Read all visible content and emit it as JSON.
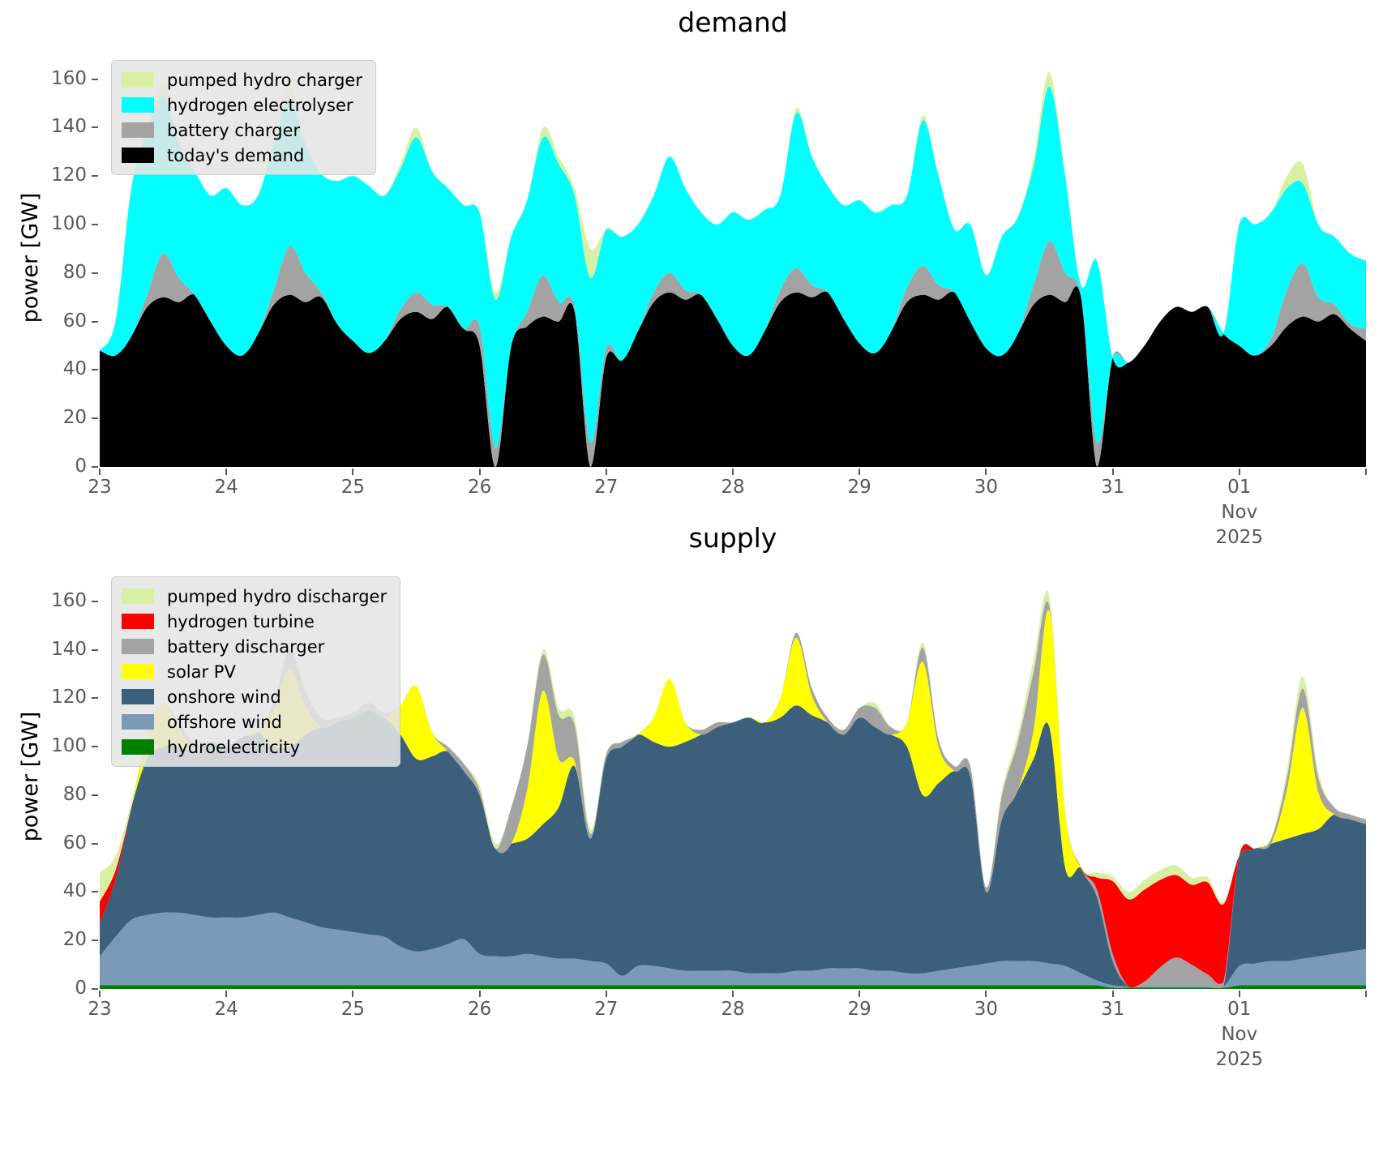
{
  "figure": {
    "background": "#ffffff",
    "tick_color": "#595959",
    "text_color": "#000000"
  },
  "chart_data": [
    {
      "type": "area",
      "title": "demand",
      "ylabel": "power [GW]",
      "ylim": [
        0,
        172.6
      ],
      "y_ticks": [
        0,
        20,
        40,
        60,
        80,
        100,
        120,
        140,
        160
      ],
      "x": {
        "unit": "hours since 2025-10-23 00:00",
        "step_hours": 3,
        "total_hours": 240,
        "tick_hours": [
          0,
          24,
          48,
          72,
          96,
          120,
          144,
          168,
          192,
          216
        ],
        "tick_labels": [
          "23",
          "24",
          "25",
          "26",
          "27",
          "28",
          "29",
          "30",
          "31",
          "01"
        ],
        "sub_label_index": 9,
        "sub_lines": [
          "Nov",
          "2025"
        ],
        "extra_tick_hour": 240
      },
      "legend_note": "legend lists series top of stack first",
      "series": [
        {
          "name": "todays-demand",
          "label": "today's demand",
          "color": "#000000",
          "values": [
            48,
            46,
            54,
            66,
            70,
            68,
            71,
            60,
            50,
            46,
            55,
            67,
            71,
            68,
            70,
            59,
            52,
            47,
            52,
            61,
            64,
            61,
            66,
            57,
            50,
            0,
            50,
            58,
            62,
            60,
            64,
            0,
            45,
            44,
            56,
            68,
            72,
            69,
            71,
            61,
            50,
            46,
            56,
            68,
            72,
            70,
            72,
            61,
            51,
            47,
            56,
            68,
            71,
            69,
            72,
            60,
            49,
            46,
            55,
            67,
            71,
            68,
            70,
            0,
            45,
            43,
            50,
            60,
            66,
            64,
            66,
            55,
            50,
            46,
            50,
            58,
            62,
            60,
            63,
            57,
            52
          ]
        },
        {
          "name": "battery-charger",
          "label": "battery charger",
          "color": "#a3a3a3",
          "values": [
            0,
            0,
            0,
            5,
            18,
            10,
            0,
            0,
            0,
            0,
            0,
            6,
            20,
            12,
            2,
            0,
            0,
            0,
            0,
            4,
            8,
            6,
            0,
            0,
            8,
            8,
            0,
            6,
            17,
            8,
            2,
            10,
            4,
            0,
            0,
            4,
            8,
            4,
            0,
            0,
            0,
            0,
            0,
            5,
            10,
            5,
            0,
            0,
            0,
            0,
            0,
            6,
            12,
            6,
            0,
            0,
            0,
            0,
            0,
            8,
            22,
            12,
            0,
            10,
            0,
            0,
            0,
            0,
            0,
            0,
            0,
            0,
            0,
            0,
            3,
            15,
            22,
            10,
            4,
            2,
            5
          ]
        },
        {
          "name": "hydrogen-electrolyser",
          "label": "hydrogen electrolyser",
          "color": "#00ffff",
          "values": [
            0,
            14,
            61,
            67,
            65,
            55,
            51,
            52,
            65,
            62,
            57,
            60,
            61,
            53,
            49,
            59,
            68,
            69,
            60,
            58,
            64,
            55,
            49,
            51,
            47,
            61,
            45,
            46,
            57,
            57,
            46,
            68,
            49,
            51,
            44,
            40,
            48,
            42,
            34,
            39,
            55,
            56,
            50,
            39,
            64,
            53,
            44,
            47,
            59,
            58,
            52,
            38,
            60,
            45,
            26,
            40,
            30,
            49,
            48,
            49,
            64,
            40,
            5,
            75,
            0,
            0,
            0,
            0,
            0,
            0,
            0,
            0,
            50,
            54,
            52,
            42,
            33,
            30,
            28,
            29,
            28
          ]
        },
        {
          "name": "pumped-hydro-charger",
          "label": "pumped hydro charger",
          "color": "#d9f0a3",
          "values": [
            0,
            0,
            0,
            2,
            5,
            2,
            0,
            0,
            0,
            0,
            0,
            2,
            6,
            2,
            0,
            0,
            0,
            0,
            0,
            2,
            4,
            0,
            0,
            0,
            0,
            3,
            0,
            0,
            4,
            3,
            3,
            12,
            0,
            0,
            0,
            0,
            0,
            0,
            0,
            0,
            0,
            0,
            0,
            0,
            2,
            0,
            0,
            0,
            0,
            0,
            0,
            0,
            2,
            0,
            0,
            0,
            0,
            0,
            0,
            3,
            6,
            0,
            0,
            0,
            0,
            0,
            0,
            0,
            0,
            0,
            0,
            0,
            0,
            0,
            0,
            5,
            8,
            0,
            0,
            0,
            0
          ]
        }
      ]
    },
    {
      "type": "area",
      "title": "supply",
      "ylabel": "power [GW]",
      "ylim": [
        0,
        175
      ],
      "y_ticks": [
        0,
        20,
        40,
        60,
        80,
        100,
        120,
        140,
        160
      ],
      "x": {
        "unit": "hours since 2025-10-23 00:00",
        "step_hours": 3,
        "total_hours": 240,
        "tick_hours": [
          0,
          24,
          48,
          72,
          96,
          120,
          144,
          168,
          192,
          216
        ],
        "tick_labels": [
          "23",
          "24",
          "25",
          "26",
          "27",
          "28",
          "29",
          "30",
          "31",
          "01"
        ],
        "sub_label_index": 9,
        "sub_lines": [
          "Nov",
          "2025"
        ],
        "extra_tick_hour": 240
      },
      "legend_note": "legend lists series top of stack first",
      "series": [
        {
          "name": "hydroelectricity",
          "label": "hydroelectricity",
          "color": "#008000",
          "values": [
            1.5,
            1.5,
            1.5,
            1.5,
            1.5,
            1.5,
            1.5,
            1.5,
            1.5,
            1.5,
            1.5,
            1.5,
            1.5,
            1.5,
            1.5,
            1.5,
            1.5,
            1.5,
            1.5,
            1.5,
            1.5,
            1.5,
            1.5,
            1.5,
            1.5,
            1.5,
            1.5,
            1.5,
            1.5,
            1.5,
            1.5,
            1.5,
            1.5,
            1.5,
            1.5,
            1.5,
            1.5,
            1.5,
            1.5,
            1.5,
            1.5,
            1.5,
            1.5,
            1.5,
            1.5,
            1.5,
            1.5,
            1.5,
            1.5,
            1.5,
            1.5,
            1.5,
            1.5,
            1.5,
            1.5,
            1.5,
            1.5,
            1.5,
            1.5,
            1.5,
            1.5,
            1.5,
            1.5,
            1.5,
            0.5,
            0.5,
            0.5,
            0.5,
            0.5,
            0.5,
            0.5,
            0.5,
            1.5,
            1.5,
            1.5,
            1.5,
            1.5,
            1.5,
            1.5,
            1.5,
            1.5
          ]
        },
        {
          "name": "offshore-wind",
          "label": "offshore wind",
          "color": "#7b9ab8",
          "values": [
            12,
            20,
            27,
            29,
            30,
            30,
            29,
            28,
            28,
            28,
            29,
            30,
            28,
            26,
            24,
            23,
            22,
            21,
            20,
            16,
            14,
            15,
            17,
            19,
            13,
            12,
            12,
            13,
            12,
            11,
            11,
            10,
            9,
            4,
            8,
            8,
            7,
            6,
            6,
            6,
            6,
            5,
            5,
            5,
            6,
            6,
            7,
            7,
            7,
            6,
            6,
            5,
            5,
            6,
            7,
            8,
            9,
            10,
            10,
            10,
            9,
            8,
            5,
            2,
            1,
            0.5,
            0.5,
            0.5,
            0.5,
            0.5,
            0.5,
            0.5,
            8,
            9,
            10,
            10,
            11,
            12,
            13,
            14,
            15
          ]
        },
        {
          "name": "onshore-wind",
          "label": "onshore wind",
          "color": "#3c607c",
          "values": [
            13.5,
            23.5,
            46.5,
            64.5,
            68.5,
            68.5,
            67.5,
            72.5,
            70.5,
            74.5,
            75.5,
            68.5,
            70.5,
            77.5,
            82.5,
            85.5,
            88.5,
            92.5,
            90.5,
            87.5,
            79.5,
            79.5,
            79.5,
            69.5,
            65.5,
            44.5,
            46.5,
            47.5,
            54.5,
            62.5,
            79.5,
            50.5,
            84.5,
            94.5,
            95.5,
            92.5,
            91.5,
            94.5,
            97.5,
            100.5,
            102.5,
            105.5,
            103.5,
            105.5,
            109.5,
            105.5,
            101.5,
            96.5,
            103.5,
            100.5,
            97.5,
            93.5,
            73.5,
            77.5,
            81.5,
            78.5,
            29.5,
            58.5,
            70.5,
            83.5,
            97.5,
            40.5,
            43.5,
            34.5,
            10,
            0,
            0,
            0,
            0,
            0,
            0,
            0,
            45.5,
            47.5,
            48.5,
            50.5,
            51.5,
            52.5,
            57.5,
            54.5,
            51.5
          ]
        },
        {
          "name": "solar-pv",
          "label": "solar PV",
          "color": "#ffff00",
          "values": [
            0,
            0,
            0,
            10,
            18,
            8,
            0,
            0,
            0,
            0,
            0,
            15,
            32,
            12,
            0,
            0,
            0,
            0,
            0,
            12,
            30,
            10,
            0,
            0,
            0,
            0,
            0,
            20,
            55,
            20,
            2,
            0,
            0,
            0,
            0,
            10,
            28,
            8,
            0,
            0,
            0,
            0,
            0,
            8,
            28,
            8,
            0,
            0,
            0,
            0,
            0,
            10,
            55,
            15,
            0,
            0,
            0,
            0,
            0,
            12,
            48,
            22,
            0,
            0,
            0,
            0,
            0,
            0,
            0,
            0,
            0,
            0,
            0,
            0,
            0,
            20,
            52,
            15,
            0,
            0,
            0
          ]
        },
        {
          "name": "battery-discharger",
          "label": "battery discharger",
          "color": "#a3a3a3",
          "values": [
            0,
            0,
            0,
            0,
            0,
            2,
            3,
            0,
            0,
            0,
            0,
            4,
            8,
            6,
            4,
            2,
            2,
            3,
            2,
            0,
            0,
            0,
            2,
            3,
            2,
            0,
            15,
            18,
            15,
            18,
            15,
            2,
            2,
            2,
            0,
            0,
            0,
            0,
            2,
            2,
            0,
            0,
            0,
            0,
            2,
            3,
            2,
            2,
            4,
            8,
            3,
            0,
            6,
            3,
            2,
            4,
            2,
            10,
            20,
            24,
            2,
            0,
            0,
            3,
            3,
            0,
            2,
            8,
            12,
            9,
            5,
            2,
            0,
            0,
            2,
            5,
            8,
            6,
            3,
            2,
            2
          ]
        },
        {
          "name": "hydrogen-turbine",
          "label": "hydrogen turbine",
          "color": "#ff0000",
          "values": [
            9,
            4,
            0,
            0,
            0,
            0,
            0,
            0,
            0,
            0,
            0,
            0,
            0,
            0,
            0,
            0,
            0,
            0,
            0,
            0,
            0,
            0,
            0,
            0,
            0,
            0,
            0,
            0,
            0,
            0,
            0,
            0,
            0,
            0,
            0,
            0,
            0,
            0,
            0,
            0,
            0,
            0,
            0,
            0,
            0,
            0,
            0,
            0,
            0,
            0,
            0,
            0,
            0,
            0,
            0,
            0,
            0,
            0,
            0,
            0,
            0,
            0,
            0,
            5,
            30,
            36,
            38,
            36,
            34,
            33,
            38,
            32,
            0,
            0,
            0,
            0,
            0,
            0,
            0,
            0,
            0
          ]
        },
        {
          "name": "pumped-hydro-discharger",
          "label": "pumped hydro discharger",
          "color": "#d9f0a3",
          "values": [
            12,
            6,
            2,
            0,
            0,
            0,
            0,
            0,
            0,
            0,
            0,
            0,
            0,
            0,
            0,
            0,
            0,
            0,
            0,
            0,
            0,
            0,
            0,
            0,
            2,
            2,
            0,
            0,
            2,
            3,
            3,
            2,
            0,
            0,
            0,
            0,
            0,
            0,
            0,
            0,
            0,
            0,
            0,
            0,
            0,
            0,
            0,
            0,
            0,
            2,
            0,
            0,
            2,
            0,
            0,
            0,
            0,
            2,
            3,
            5,
            4,
            2,
            0,
            2,
            2,
            3,
            4,
            4,
            4,
            3,
            2,
            1,
            0,
            0,
            0,
            3,
            5,
            2,
            0,
            0,
            0
          ]
        }
      ]
    }
  ]
}
